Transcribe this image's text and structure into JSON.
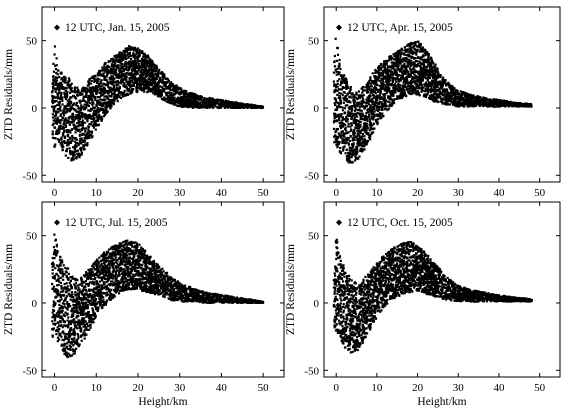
{
  "figure": {
    "xlabel": "Height/km",
    "ylabel": "ZTD Residuals/mm"
  },
  "chart_data": [
    {
      "type": "scatter",
      "legend": "12 UTC, Jan. 15, 2005",
      "legend_position": "top-left",
      "xlabel": "Height/km",
      "ylabel": "ZTD Residuals/mm",
      "xlim": [
        -3,
        55
      ],
      "ylim": [
        -55,
        75
      ],
      "xticks": [
        0,
        10,
        20,
        30,
        40,
        50
      ],
      "yticks": [
        -50,
        0,
        50
      ],
      "envelope": [
        {
          "x": -0.5,
          "lo": -28,
          "hi": 22
        },
        {
          "x": 0,
          "lo": -30,
          "hi": 48
        },
        {
          "x": 0.5,
          "lo": -25,
          "hi": 38
        },
        {
          "x": 1,
          "lo": -26,
          "hi": 28
        },
        {
          "x": 2,
          "lo": -32,
          "hi": 26
        },
        {
          "x": 3,
          "lo": -37,
          "hi": 24
        },
        {
          "x": 4,
          "lo": -39,
          "hi": 20
        },
        {
          "x": 5,
          "lo": -39,
          "hi": 16
        },
        {
          "x": 6,
          "lo": -37,
          "hi": 14
        },
        {
          "x": 8,
          "lo": -28,
          "hi": 20
        },
        {
          "x": 10,
          "lo": -17,
          "hi": 26
        },
        {
          "x": 12,
          "lo": -6,
          "hi": 33
        },
        {
          "x": 14,
          "lo": 2,
          "hi": 38
        },
        {
          "x": 16,
          "lo": 7,
          "hi": 42
        },
        {
          "x": 18,
          "lo": 10,
          "hi": 46
        },
        {
          "x": 20,
          "lo": 12,
          "hi": 45
        },
        {
          "x": 22,
          "lo": 12,
          "hi": 40
        },
        {
          "x": 24,
          "lo": 10,
          "hi": 33
        },
        {
          "x": 26,
          "lo": 6,
          "hi": 26
        },
        {
          "x": 28,
          "lo": 3,
          "hi": 19
        },
        {
          "x": 30,
          "lo": 1,
          "hi": 15
        },
        {
          "x": 33,
          "lo": 0,
          "hi": 11
        },
        {
          "x": 36,
          "lo": 0,
          "hi": 8
        },
        {
          "x": 40,
          "lo": 0,
          "hi": 6
        },
        {
          "x": 44,
          "lo": 0,
          "hi": 4
        },
        {
          "x": 48,
          "lo": 0,
          "hi": 2
        },
        {
          "x": 50,
          "lo": 0,
          "hi": 1
        }
      ]
    },
    {
      "type": "scatter",
      "legend": "12 UTC, Apr. 15, 2005",
      "legend_position": "top-left",
      "xlabel": "Height/km",
      "ylabel": "ZTD Residuals/mm",
      "xlim": [
        -3,
        55
      ],
      "ylim": [
        -55,
        75
      ],
      "xticks": [
        0,
        10,
        20,
        30,
        40,
        50
      ],
      "yticks": [
        -50,
        0,
        50
      ],
      "envelope": [
        {
          "x": -0.5,
          "lo": -25,
          "hi": 30
        },
        {
          "x": 0,
          "lo": -28,
          "hi": 54
        },
        {
          "x": 0.5,
          "lo": -30,
          "hi": 42
        },
        {
          "x": 1,
          "lo": -33,
          "hi": 33
        },
        {
          "x": 2,
          "lo": -38,
          "hi": 25
        },
        {
          "x": 3,
          "lo": -41,
          "hi": 19
        },
        {
          "x": 4,
          "lo": -41,
          "hi": 14
        },
        {
          "x": 5,
          "lo": -40,
          "hi": 12
        },
        {
          "x": 6,
          "lo": -36,
          "hi": 14
        },
        {
          "x": 8,
          "lo": -25,
          "hi": 22
        },
        {
          "x": 10,
          "lo": -13,
          "hi": 30
        },
        {
          "x": 12,
          "lo": -4,
          "hi": 36
        },
        {
          "x": 14,
          "lo": 3,
          "hi": 40
        },
        {
          "x": 16,
          "lo": 7,
          "hi": 44
        },
        {
          "x": 18,
          "lo": 10,
          "hi": 48
        },
        {
          "x": 20,
          "lo": 10,
          "hi": 50
        },
        {
          "x": 22,
          "lo": 8,
          "hi": 44
        },
        {
          "x": 24,
          "lo": 5,
          "hi": 34
        },
        {
          "x": 26,
          "lo": 3,
          "hi": 24
        },
        {
          "x": 28,
          "lo": 2,
          "hi": 17
        },
        {
          "x": 30,
          "lo": 1,
          "hi": 13
        },
        {
          "x": 33,
          "lo": 1,
          "hi": 10
        },
        {
          "x": 36,
          "lo": 1,
          "hi": 8
        },
        {
          "x": 40,
          "lo": 1,
          "hi": 6
        },
        {
          "x": 44,
          "lo": 1,
          "hi": 4
        },
        {
          "x": 48,
          "lo": 1,
          "hi": 3
        }
      ]
    },
    {
      "type": "scatter",
      "legend": "12 UTC, Jul. 15, 2005",
      "legend_position": "top-left",
      "xlabel": "Height/km",
      "ylabel": "ZTD Residuals/mm",
      "xlim": [
        -3,
        55
      ],
      "ylim": [
        -55,
        75
      ],
      "xticks": [
        0,
        10,
        20,
        30,
        40,
        50
      ],
      "yticks": [
        -50,
        0,
        50
      ],
      "envelope": [
        {
          "x": -0.5,
          "lo": -25,
          "hi": 30
        },
        {
          "x": 0,
          "lo": -28,
          "hi": 54
        },
        {
          "x": 0.5,
          "lo": -26,
          "hi": 44
        },
        {
          "x": 1,
          "lo": -30,
          "hi": 38
        },
        {
          "x": 2,
          "lo": -36,
          "hi": 32
        },
        {
          "x": 3,
          "lo": -41,
          "hi": 28
        },
        {
          "x": 4,
          "lo": -40,
          "hi": 22
        },
        {
          "x": 5,
          "lo": -37,
          "hi": 18
        },
        {
          "x": 6,
          "lo": -33,
          "hi": 18
        },
        {
          "x": 8,
          "lo": -22,
          "hi": 24
        },
        {
          "x": 10,
          "lo": -10,
          "hi": 32
        },
        {
          "x": 12,
          "lo": -2,
          "hi": 38
        },
        {
          "x": 14,
          "lo": 4,
          "hi": 42
        },
        {
          "x": 16,
          "lo": 8,
          "hi": 45
        },
        {
          "x": 18,
          "lo": 10,
          "hi": 47
        },
        {
          "x": 20,
          "lo": 10,
          "hi": 44
        },
        {
          "x": 22,
          "lo": 8,
          "hi": 38
        },
        {
          "x": 24,
          "lo": 6,
          "hi": 31
        },
        {
          "x": 26,
          "lo": 4,
          "hi": 25
        },
        {
          "x": 28,
          "lo": 2,
          "hi": 19
        },
        {
          "x": 30,
          "lo": 1,
          "hi": 15
        },
        {
          "x": 33,
          "lo": 1,
          "hi": 11
        },
        {
          "x": 36,
          "lo": 0,
          "hi": 8
        },
        {
          "x": 40,
          "lo": 0,
          "hi": 6
        },
        {
          "x": 44,
          "lo": 0,
          "hi": 4
        },
        {
          "x": 48,
          "lo": 0,
          "hi": 2
        },
        {
          "x": 50,
          "lo": 0,
          "hi": 1
        }
      ]
    },
    {
      "type": "scatter",
      "legend": "12 UTC, Oct. 15, 2005",
      "legend_position": "top-left",
      "xlabel": "Height/km",
      "ylabel": "ZTD Residuals/mm",
      "xlim": [
        -3,
        55
      ],
      "ylim": [
        -55,
        75
      ],
      "xticks": [
        0,
        10,
        20,
        30,
        40,
        50
      ],
      "yticks": [
        -50,
        0,
        50
      ],
      "envelope": [
        {
          "x": -0.5,
          "lo": -20,
          "hi": 20
        },
        {
          "x": 0,
          "lo": -25,
          "hi": 50
        },
        {
          "x": 0.5,
          "lo": -22,
          "hi": 42
        },
        {
          "x": 1,
          "lo": -26,
          "hi": 34
        },
        {
          "x": 2,
          "lo": -33,
          "hi": 27
        },
        {
          "x": 3,
          "lo": -37,
          "hi": 22
        },
        {
          "x": 4,
          "lo": -38,
          "hi": 17
        },
        {
          "x": 5,
          "lo": -36,
          "hi": 15
        },
        {
          "x": 6,
          "lo": -32,
          "hi": 16
        },
        {
          "x": 8,
          "lo": -22,
          "hi": 22
        },
        {
          "x": 10,
          "lo": -10,
          "hi": 30
        },
        {
          "x": 12,
          "lo": -2,
          "hi": 36
        },
        {
          "x": 14,
          "lo": 3,
          "hi": 41
        },
        {
          "x": 16,
          "lo": 6,
          "hi": 44
        },
        {
          "x": 18,
          "lo": 8,
          "hi": 46
        },
        {
          "x": 20,
          "lo": 9,
          "hi": 43
        },
        {
          "x": 22,
          "lo": 7,
          "hi": 37
        },
        {
          "x": 24,
          "lo": 5,
          "hi": 30
        },
        {
          "x": 26,
          "lo": 3,
          "hi": 23
        },
        {
          "x": 28,
          "lo": 2,
          "hi": 17
        },
        {
          "x": 30,
          "lo": 1,
          "hi": 13
        },
        {
          "x": 33,
          "lo": 1,
          "hi": 10
        },
        {
          "x": 36,
          "lo": 1,
          "hi": 8
        },
        {
          "x": 40,
          "lo": 1,
          "hi": 6
        },
        {
          "x": 44,
          "lo": 1,
          "hi": 4
        },
        {
          "x": 48,
          "lo": 1,
          "hi": 3
        }
      ]
    }
  ]
}
